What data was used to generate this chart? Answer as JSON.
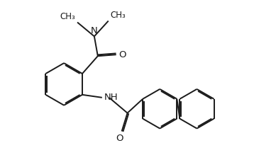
{
  "bg_color": "#ffffff",
  "line_color": "#1a1a1a",
  "line_width": 1.4,
  "dbo": 0.018,
  "font_size": 8.5,
  "figsize": [
    3.89,
    2.19
  ],
  "dpi": 100,
  "xlim": [
    0.05,
    3.85
  ],
  "ylim": [
    -0.05,
    2.14
  ]
}
